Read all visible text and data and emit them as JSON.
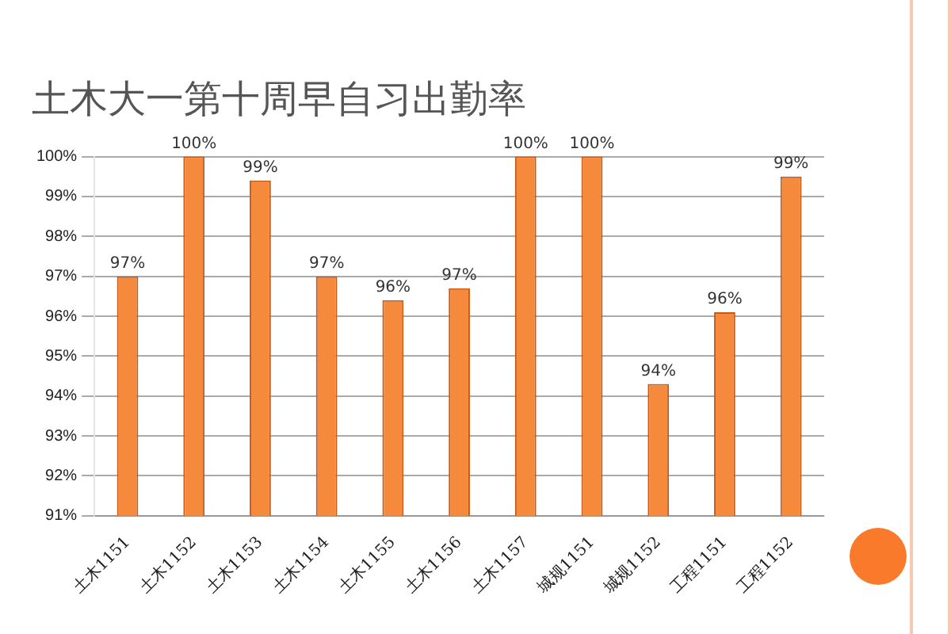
{
  "chart_data": {
    "type": "bar",
    "title": "土木大一第十周早自习出勤率",
    "categories": [
      "土木1151",
      "土木1152",
      "土木1153",
      "土木1154",
      "土木1155",
      "土木1156",
      "土木1157",
      "城规1151",
      "城规1152",
      "工程1151",
      "工程1152"
    ],
    "values": [
      97,
      100,
      99.4,
      97,
      96.4,
      96.7,
      100,
      100,
      94.3,
      96.1,
      99.5
    ],
    "value_labels": [
      "97%",
      "100%",
      "99%",
      "97%",
      "96%",
      "97%",
      "100%",
      "100%",
      "94%",
      "96%",
      "99%"
    ],
    "color": "#f58a3c",
    "ylim": [
      91,
      100
    ],
    "yticks": [
      {
        "value": 91,
        "label": "91%"
      },
      {
        "value": 92,
        "label": "92%"
      },
      {
        "value": 93,
        "label": "93%"
      },
      {
        "value": 94,
        "label": "94%"
      },
      {
        "value": 95,
        "label": "95%"
      },
      {
        "value": 96,
        "label": "96%"
      },
      {
        "value": 97,
        "label": "97%"
      },
      {
        "value": 98,
        "label": "98%"
      },
      {
        "value": 99,
        "label": "99%"
      },
      {
        "value": 100,
        "label": "100%"
      }
    ],
    "grid": "y",
    "legend": false
  }
}
